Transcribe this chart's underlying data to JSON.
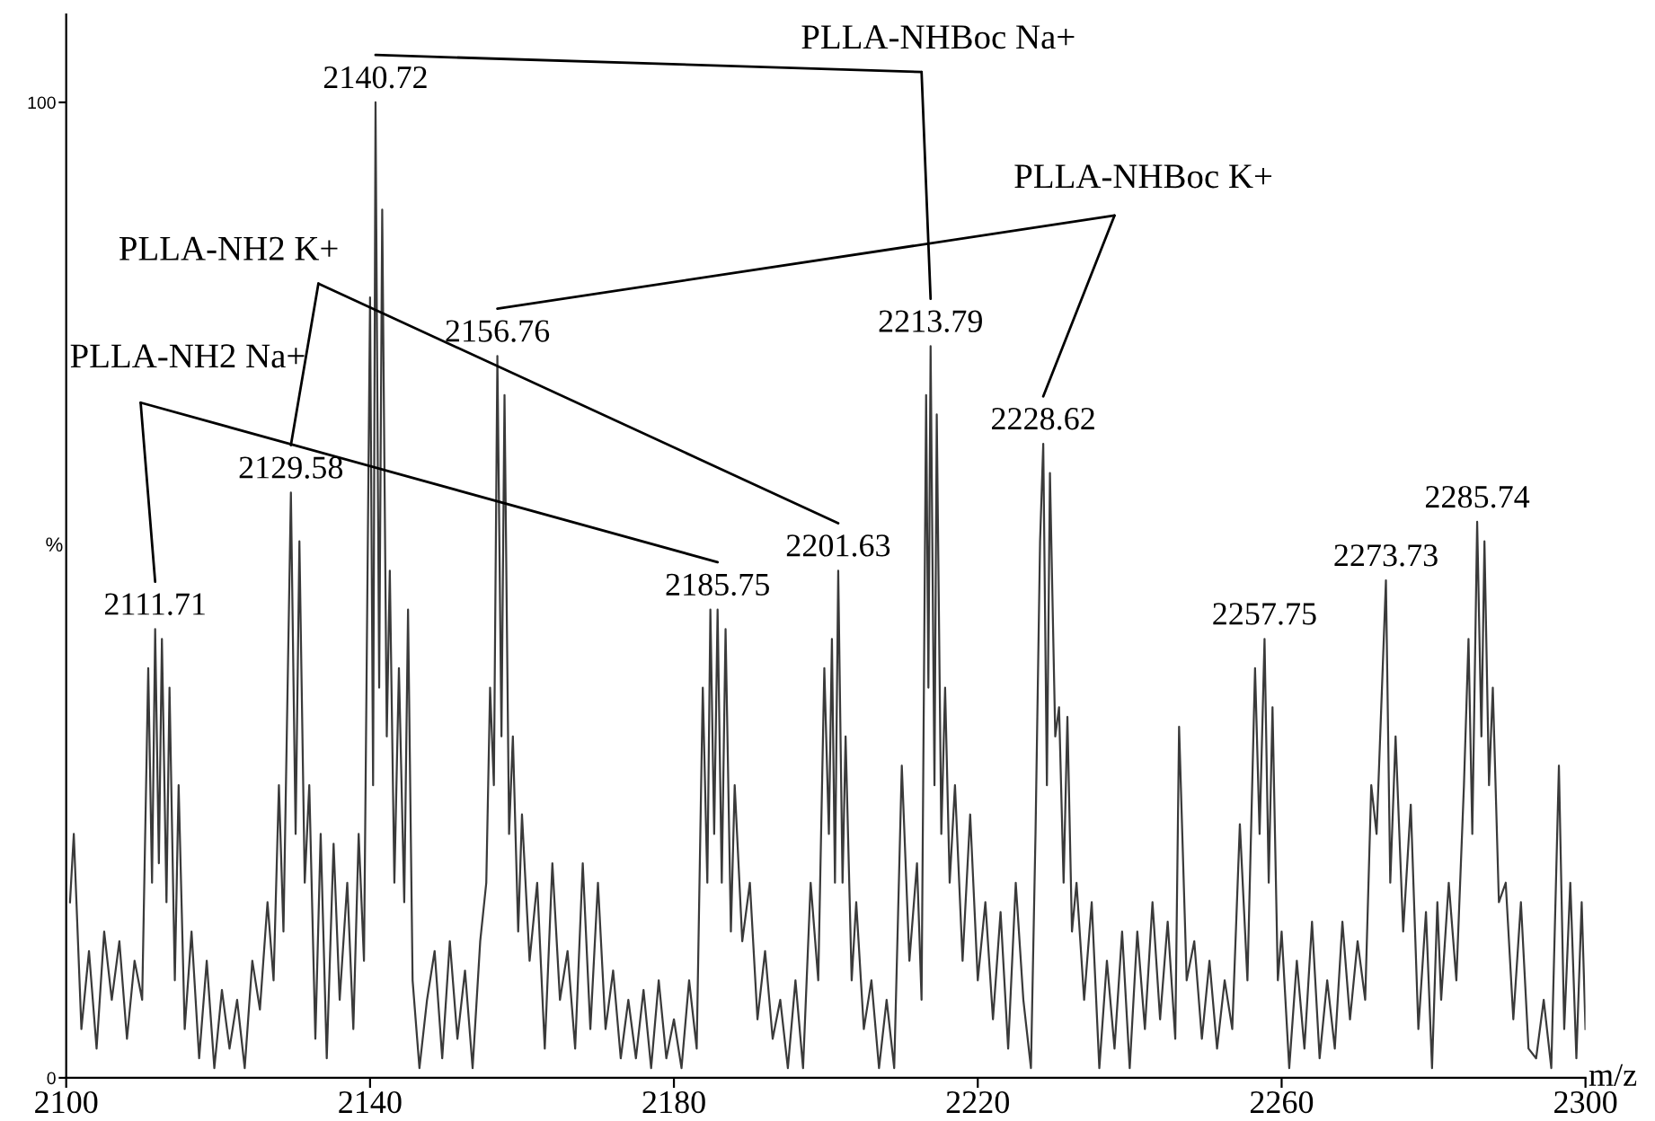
{
  "chart_data": {
    "type": "line",
    "color": "#3a3a3a",
    "line_style": "solid",
    "marker": "none",
    "xlabel": "m/z",
    "ylabel": "%",
    "xlim": [
      2100,
      2300
    ],
    "xticks": [
      2100,
      2140,
      2180,
      2220,
      2260,
      2300
    ],
    "ylim": [
      0,
      109
    ],
    "yticks": [
      0,
      100
    ],
    "x": [
      2100.5,
      2101,
      2102,
      2103,
      2104,
      2105,
      2106,
      2107,
      2108,
      2109,
      2110,
      2110.8,
      2111.3,
      2111.71,
      2112.2,
      2112.6,
      2113.2,
      2113.6,
      2114.3,
      2114.8,
      2115.6,
      2116.5,
      2117.5,
      2118.5,
      2119.5,
      2120.5,
      2121.5,
      2122.5,
      2123.5,
      2124.5,
      2125.5,
      2126.5,
      2127.3,
      2128,
      2128.6,
      2129.58,
      2130.2,
      2130.7,
      2131.4,
      2132,
      2132.8,
      2133.5,
      2134.3,
      2135.2,
      2136,
      2137,
      2137.8,
      2138.5,
      2139.2,
      2140.0,
      2140.4,
      2140.72,
      2141.2,
      2141.6,
      2142.2,
      2142.6,
      2143.2,
      2143.8,
      2144.5,
      2145,
      2145.6,
      2146.5,
      2147.5,
      2148.5,
      2149.5,
      2150.5,
      2151.5,
      2152.5,
      2153.5,
      2154.5,
      2155.3,
      2155.8,
      2156.3,
      2156.76,
      2157.3,
      2157.7,
      2158.3,
      2158.8,
      2159.5,
      2160,
      2161,
      2162,
      2163,
      2164,
      2165,
      2166,
      2167,
      2168,
      2169,
      2170,
      2171,
      2172,
      2173,
      2174,
      2175,
      2176,
      2177,
      2178,
      2179,
      2180,
      2181,
      2182,
      2183,
      2183.8,
      2184.4,
      2184.8,
      2185.3,
      2185.75,
      2186.3,
      2186.8,
      2187.5,
      2188,
      2189,
      2190,
      2191,
      2192,
      2193,
      2194,
      2195,
      2196,
      2197,
      2198,
      2199,
      2199.8,
      2200.4,
      2200.8,
      2201.2,
      2201.63,
      2202.2,
      2202.6,
      2203.4,
      2204,
      2205,
      2206,
      2207,
      2208,
      2209,
      2210,
      2211,
      2212,
      2212.6,
      2213.2,
      2213.5,
      2213.79,
      2214.3,
      2214.6,
      2215.2,
      2215.7,
      2216.3,
      2217,
      2218,
      2219,
      2220,
      2221,
      2222,
      2223,
      2224,
      2225,
      2226,
      2227,
      2227.6,
      2228.2,
      2228.62,
      2229.1,
      2229.5,
      2230.2,
      2230.7,
      2231.3,
      2231.8,
      2232.4,
      2233,
      2234,
      2235,
      2236,
      2237,
      2238,
      2239,
      2240,
      2241,
      2242,
      2243,
      2244,
      2245,
      2246,
      2246.5,
      2247.5,
      2248.5,
      2249.5,
      2250.5,
      2251.5,
      2252.5,
      2253.5,
      2254.5,
      2255.5,
      2256.5,
      2257.1,
      2257.75,
      2258.3,
      2258.8,
      2259.5,
      2260,
      2261,
      2262,
      2263,
      2264,
      2265,
      2266,
      2267,
      2268,
      2269,
      2270,
      2271,
      2271.8,
      2272.5,
      2273.73,
      2274.3,
      2275,
      2276,
      2277,
      2278,
      2279,
      2279.8,
      2280.5,
      2281,
      2282,
      2283,
      2284,
      2284.6,
      2285.1,
      2285.74,
      2286.3,
      2286.7,
      2287.3,
      2287.8,
      2288.6,
      2289.5,
      2290.5,
      2291.5,
      2292.5,
      2293.5,
      2294.5,
      2295.5,
      2296.5,
      2297.2,
      2298,
      2298.8,
      2299.5,
      2300
    ],
    "values": [
      18,
      25,
      5,
      13,
      3,
      15,
      8,
      14,
      4,
      12,
      8,
      42,
      20,
      46,
      22,
      45,
      18,
      40,
      10,
      30,
      5,
      15,
      2,
      12,
      1,
      9,
      3,
      8,
      1,
      12,
      7,
      18,
      10,
      30,
      15,
      60,
      25,
      55,
      20,
      30,
      4,
      25,
      2,
      24,
      8,
      20,
      5,
      25,
      12,
      80,
      30,
      100,
      40,
      89,
      35,
      52,
      20,
      42,
      18,
      48,
      10,
      1,
      8,
      13,
      2,
      14,
      4,
      11,
      1,
      14,
      20,
      40,
      30,
      74,
      35,
      70,
      25,
      35,
      15,
      27,
      12,
      20,
      3,
      22,
      8,
      13,
      3,
      22,
      5,
      20,
      5,
      11,
      2,
      8,
      2,
      9,
      1,
      10,
      2,
      6,
      1,
      10,
      3,
      40,
      20,
      48,
      25,
      48,
      20,
      46,
      15,
      30,
      14,
      20,
      6,
      13,
      4,
      8,
      1,
      10,
      1,
      20,
      10,
      42,
      25,
      45,
      20,
      52,
      20,
      35,
      10,
      18,
      5,
      10,
      1,
      8,
      1,
      32,
      12,
      22,
      8,
      70,
      40,
      75,
      30,
      68,
      25,
      40,
      20,
      30,
      12,
      27,
      10,
      18,
      6,
      17,
      3,
      20,
      8,
      1,
      25,
      55,
      65,
      30,
      62,
      35,
      38,
      20,
      37,
      15,
      20,
      8,
      18,
      1,
      12,
      3,
      15,
      1,
      15,
      5,
      18,
      6,
      16,
      4,
      36,
      10,
      14,
      4,
      12,
      3,
      10,
      5,
      26,
      10,
      42,
      25,
      45,
      20,
      38,
      10,
      15,
      1,
      12,
      3,
      16,
      2,
      10,
      3,
      16,
      6,
      14,
      8,
      30,
      25,
      51,
      20,
      35,
      15,
      28,
      5,
      17,
      1,
      18,
      8,
      20,
      10,
      30,
      45,
      25,
      57,
      35,
      55,
      30,
      40,
      18,
      20,
      6,
      18,
      3,
      2,
      8,
      1,
      32,
      5,
      20,
      2,
      18,
      5
    ],
    "annotations": [
      {
        "text": "2111.71",
        "x": 2111.71,
        "y": 46
      },
      {
        "text": "2129.58",
        "x": 2129.58,
        "y": 60
      },
      {
        "text": "2140.72",
        "x": 2140.72,
        "y": 100
      },
      {
        "text": "2156.76",
        "x": 2156.76,
        "y": 74
      },
      {
        "text": "2185.75",
        "x": 2185.75,
        "y": 48
      },
      {
        "text": "2201.63",
        "x": 2201.63,
        "y": 52
      },
      {
        "text": "2213.79",
        "x": 2213.79,
        "y": 75
      },
      {
        "text": "2228.62",
        "x": 2228.62,
        "y": 65
      },
      {
        "text": "2257.75",
        "x": 2257.75,
        "y": 45
      },
      {
        "text": "2273.73",
        "x": 2273.73,
        "y": 51
      },
      {
        "text": "2285.74",
        "x": 2285.74,
        "y": 57
      },
      "PLLA-NHBoc Na+",
      "PLLA-NHBoc K+",
      "PLLA-NH2 K+",
      "PLLA-NH2 Na+"
    ]
  }
}
